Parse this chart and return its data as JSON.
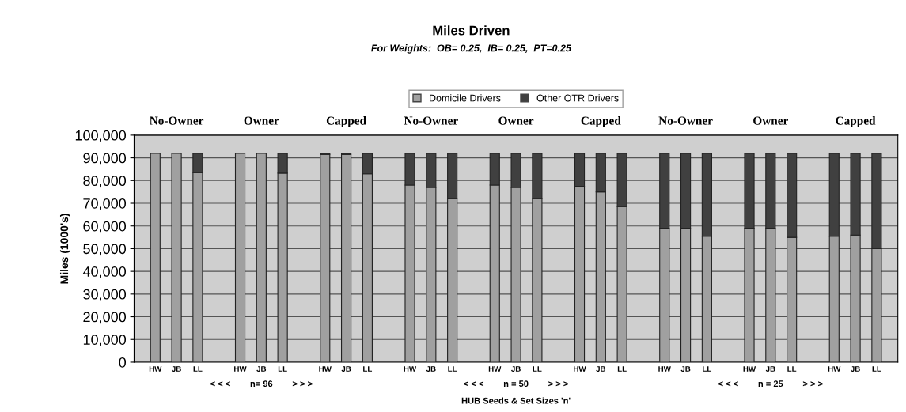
{
  "chart_data": {
    "type": "bar",
    "title": "Miles Driven",
    "subtitle": "For Weights:  OB= 0.25,  IB= 0.25,  PT=0.25",
    "xlabel": "HUB Seeds & Set Sizes 'n'",
    "ylabel": "Miles (1000's)",
    "categories": [
      "HW",
      "JB",
      "LL",
      null,
      "HW",
      "JB",
      "LL",
      null,
      "HW",
      "JB",
      "LL",
      null,
      "HW",
      "JB",
      "LL",
      null,
      "HW",
      "JB",
      "LL",
      null,
      "HW",
      "JB",
      "LL",
      null,
      "HW",
      "JB",
      "LL",
      null,
      "HW",
      "JB",
      "LL",
      null,
      "HW",
      "JB",
      "LL"
    ],
    "series": [
      {
        "name": "Domicile Drivers",
        "color": "#a0a0a0",
        "values": [
          92000,
          92000,
          83500,
          null,
          92000,
          92000,
          83300,
          null,
          91500,
          91500,
          83000,
          null,
          78000,
          77000,
          72000,
          null,
          78000,
          77000,
          72000,
          null,
          77500,
          75000,
          68500,
          null,
          59000,
          59000,
          55500,
          null,
          59000,
          59000,
          55000,
          null,
          55500,
          56000,
          50000
        ]
      },
      {
        "name": "Other OTR Drivers",
        "color": "#404040",
        "values": [
          null,
          null,
          8500,
          null,
          null,
          null,
          8700,
          null,
          500,
          500,
          9000,
          null,
          14000,
          15000,
          20000,
          null,
          14000,
          15000,
          20000,
          null,
          14500,
          17000,
          23500,
          null,
          33000,
          33000,
          36500,
          null,
          33000,
          33000,
          37000,
          null,
          36500,
          36000,
          42000
        ]
      }
    ],
    "stacked": true,
    "ylim": [
      0,
      100000
    ],
    "yticks": [
      {
        "value": 0,
        "label": "0"
      },
      {
        "value": 10000,
        "label": "10,000"
      },
      {
        "value": 20000,
        "label": "20,000"
      },
      {
        "value": 30000,
        "label": "30,000"
      },
      {
        "value": 40000,
        "label": "40,000"
      },
      {
        "value": 50000,
        "label": "50,000"
      },
      {
        "value": 60000,
        "label": "60,000"
      },
      {
        "value": 70000,
        "label": "70,000"
      },
      {
        "value": 80000,
        "label": "80,000"
      },
      {
        "value": 90000,
        "label": "90,000"
      },
      {
        "value": 100000,
        "label": "100,000"
      }
    ],
    "grid": "y",
    "legend": "top",
    "annotations": [
      "No-Owner",
      "Owner",
      "Capped",
      "No-Owner",
      "Owner",
      "Capped",
      "No-Owner",
      "Owner",
      "Capped",
      "< < <        n= 96        > > >",
      "< < <        n = 50        > > >",
      "< < <        n = 25        > > >"
    ]
  }
}
